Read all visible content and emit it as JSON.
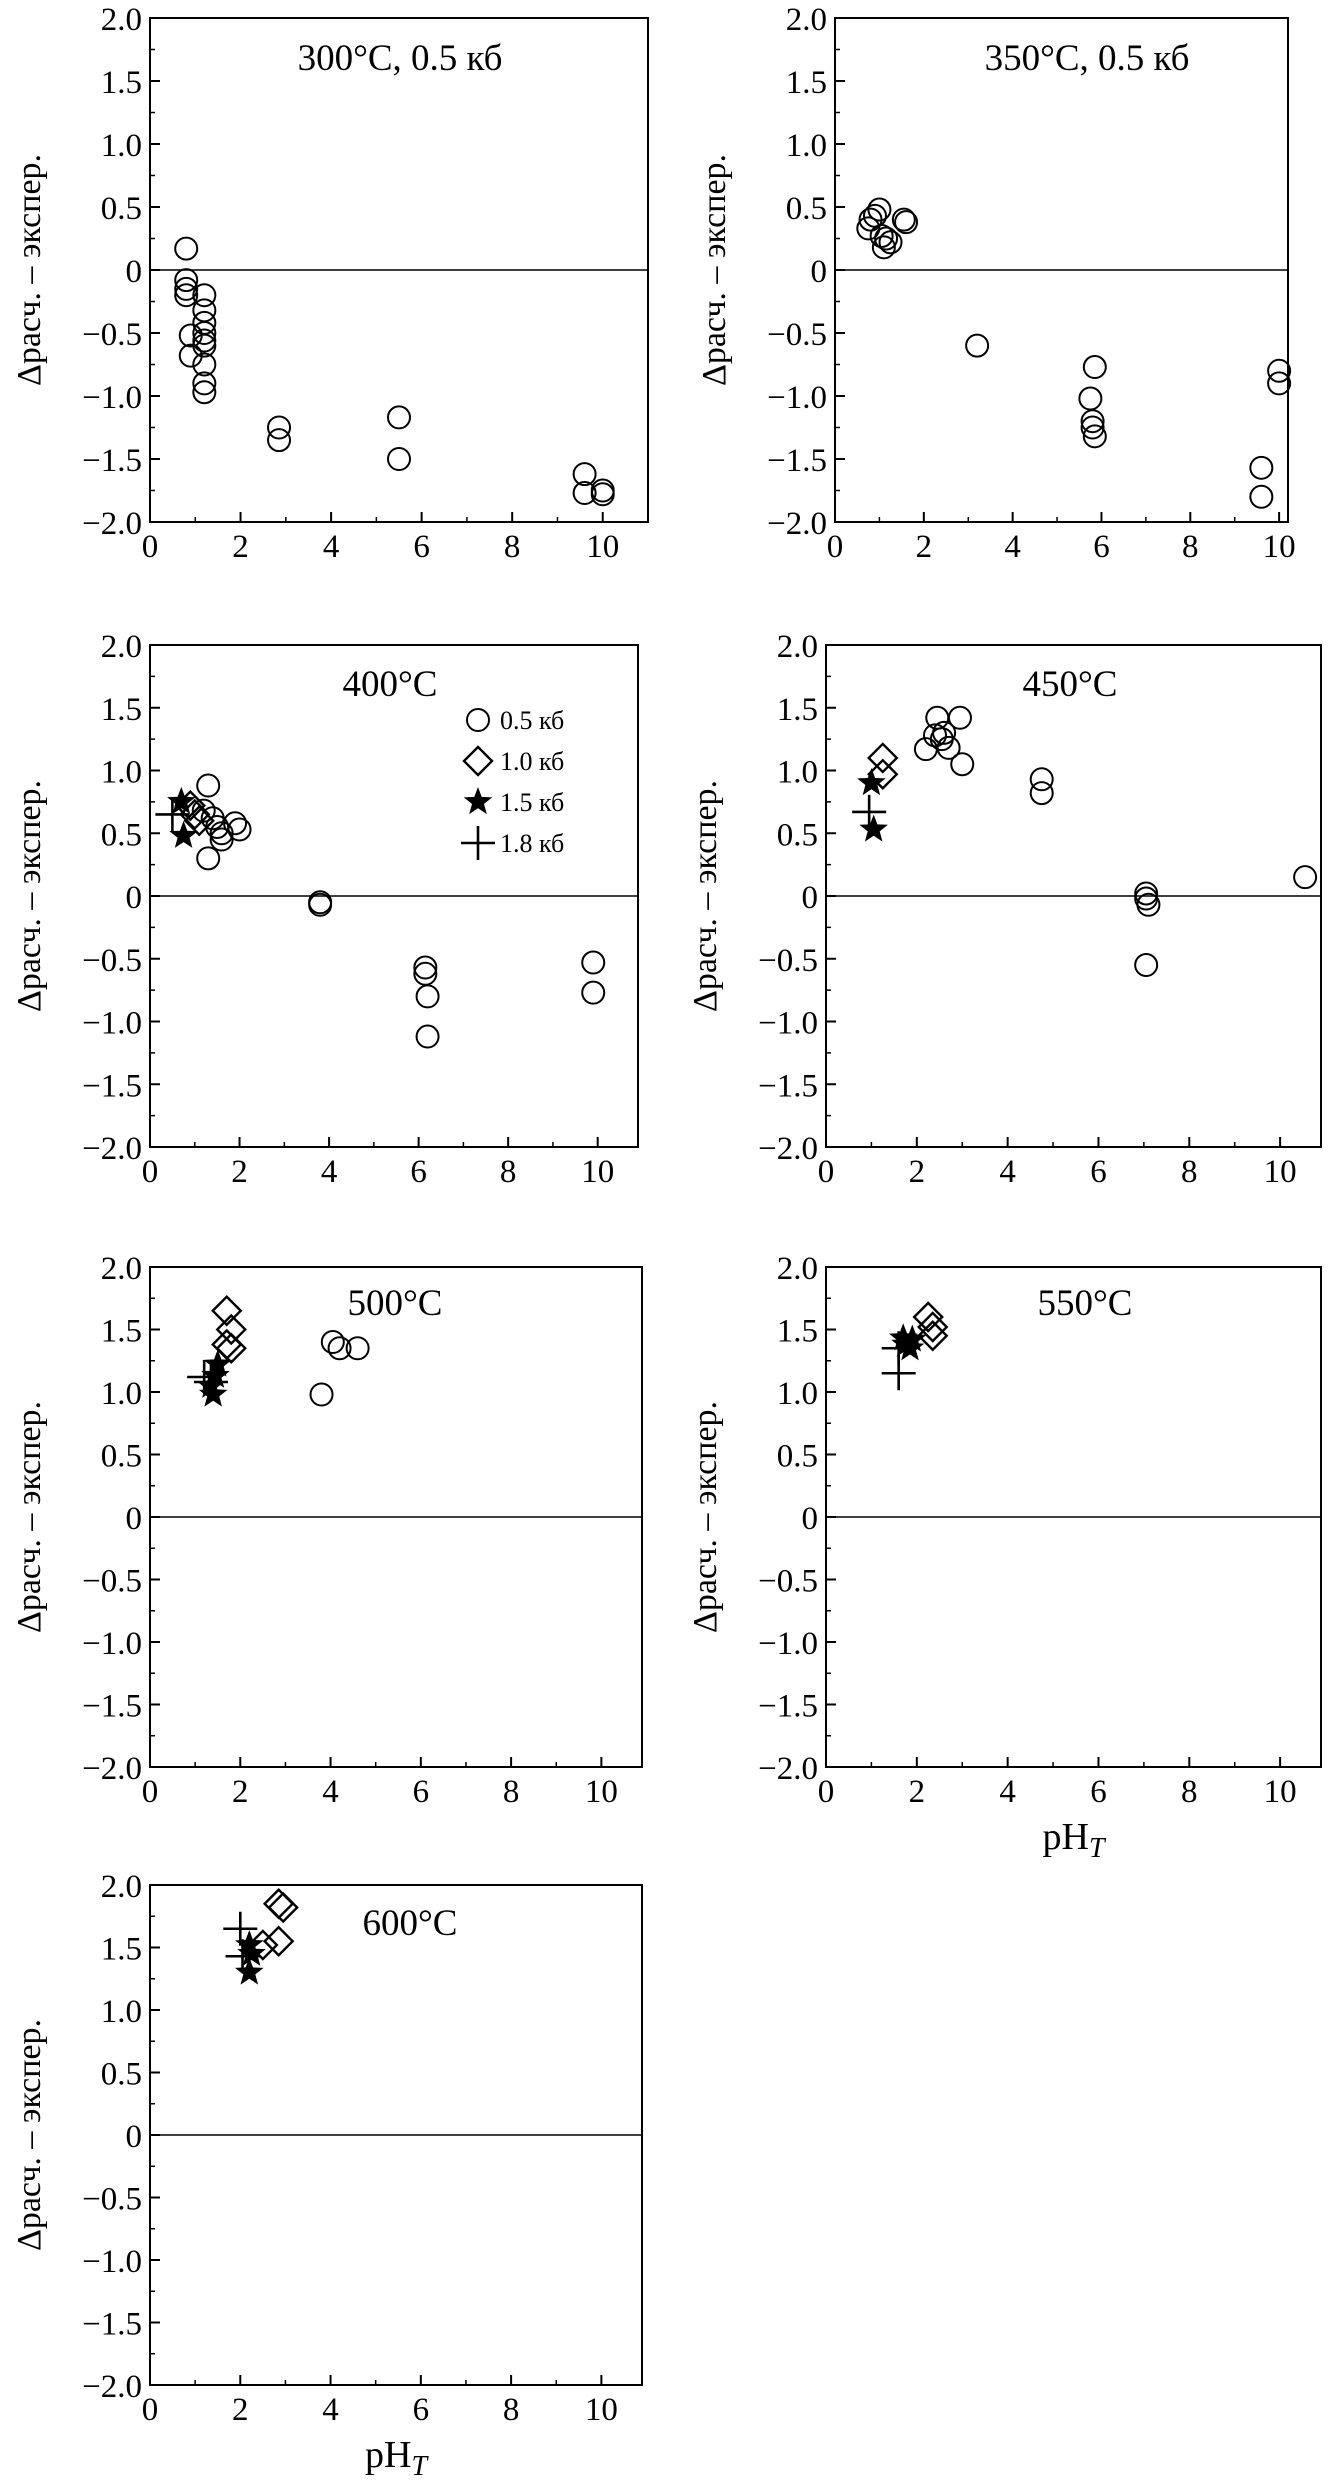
{
  "chart_data": [
    {
      "type": "scatter",
      "title": "300°C, 0.5 кб",
      "ylabel": "Δрасч. – экспер.",
      "xlabel": "",
      "xlim": [
        0,
        11
      ],
      "ylim": [
        -2.0,
        2.0
      ],
      "xticks": [
        "0",
        "2",
        "4",
        "6",
        "8",
        "10"
      ],
      "yticks": [
        "2.0",
        "1.5",
        "1.0",
        "0.5",
        "0",
        "-0.5",
        "-1.0",
        "-1.5",
        "-2.0"
      ],
      "series": [
        {
          "name": "0.5 кб",
          "marker": "circle",
          "points": [
            [
              0.8,
              0.17
            ],
            [
              0.8,
              -0.08
            ],
            [
              0.8,
              -0.15
            ],
            [
              0.8,
              -0.2
            ],
            [
              0.9,
              -0.52
            ],
            [
              0.9,
              -0.68
            ],
            [
              1.2,
              -0.2
            ],
            [
              1.2,
              -0.32
            ],
            [
              1.2,
              -0.42
            ],
            [
              1.2,
              -0.5
            ],
            [
              1.2,
              -0.56
            ],
            [
              1.2,
              -0.6
            ],
            [
              1.2,
              -0.75
            ],
            [
              1.2,
              -0.9
            ],
            [
              1.2,
              -0.97
            ],
            [
              2.85,
              -1.25
            ],
            [
              2.85,
              -1.35
            ],
            [
              5.5,
              -1.17
            ],
            [
              5.5,
              -1.5
            ],
            [
              9.6,
              -1.62
            ],
            [
              9.6,
              -1.77
            ],
            [
              10.0,
              -1.75
            ],
            [
              10.0,
              -1.78
            ]
          ]
        }
      ]
    },
    {
      "type": "scatter",
      "title": "350°C, 0.5 кб",
      "ylabel": "Δрасч. – экспер.",
      "xlabel": "",
      "xlim": [
        0,
        10.2
      ],
      "ylim": [
        -2.0,
        2.0
      ],
      "xticks": [
        "0",
        "2",
        "4",
        "6",
        "8",
        "10"
      ],
      "yticks": [
        "2.0",
        "1.5",
        "1.0",
        "0.5",
        "0",
        "-0.5",
        "-1.0",
        "-1.5",
        "-2.0"
      ],
      "series": [
        {
          "name": "0.5 кб",
          "marker": "circle",
          "points": [
            [
              0.75,
              0.33
            ],
            [
              0.8,
              0.4
            ],
            [
              0.9,
              0.43
            ],
            [
              1.0,
              0.48
            ],
            [
              1.05,
              0.27
            ],
            [
              1.1,
              0.18
            ],
            [
              1.15,
              0.25
            ],
            [
              1.25,
              0.22
            ],
            [
              1.55,
              0.4
            ],
            [
              1.6,
              0.38
            ],
            [
              3.2,
              -0.6
            ],
            [
              5.75,
              -1.02
            ],
            [
              5.8,
              -1.2
            ],
            [
              5.8,
              -1.25
            ],
            [
              5.85,
              -1.32
            ],
            [
              5.85,
              -0.77
            ],
            [
              9.6,
              -1.57
            ],
            [
              9.6,
              -1.8
            ],
            [
              10.0,
              -0.8
            ],
            [
              10.0,
              -0.9
            ]
          ]
        }
      ]
    },
    {
      "type": "scatter",
      "title": "400°C",
      "ylabel": "Δрасч. – экспер.",
      "xlabel": "",
      "xlim": [
        0,
        10.9
      ],
      "ylim": [
        -2.0,
        2.0
      ],
      "xticks": [
        "0",
        "2",
        "4",
        "6",
        "8",
        "10"
      ],
      "yticks": [
        "2.0",
        "1.5",
        "1.0",
        "0.5",
        "0",
        "-0.5",
        "-1.0",
        "-1.5",
        "-2.0"
      ],
      "legend": [
        "0.5 кб",
        "1.0 кб",
        "1.5 кб",
        "1.8 кб"
      ],
      "series": [
        {
          "name": "0.5 кб",
          "marker": "circle",
          "points": [
            [
              1.2,
              0.68
            ],
            [
              1.3,
              0.88
            ],
            [
              1.3,
              0.3
            ],
            [
              1.4,
              0.62
            ],
            [
              1.5,
              0.55
            ],
            [
              1.6,
              0.5
            ],
            [
              1.6,
              0.45
            ],
            [
              1.9,
              0.58
            ],
            [
              2.0,
              0.53
            ],
            [
              3.8,
              -0.05
            ],
            [
              3.8,
              -0.07
            ],
            [
              6.15,
              -0.57
            ],
            [
              6.15,
              -0.62
            ],
            [
              6.2,
              -0.8
            ],
            [
              6.2,
              -1.12
            ],
            [
              9.9,
              -0.53
            ],
            [
              9.9,
              -0.77
            ]
          ]
        },
        {
          "name": "1.0 кб",
          "marker": "diamond",
          "points": [
            [
              0.9,
              0.72
            ],
            [
              1.0,
              0.65
            ],
            [
              1.1,
              0.6
            ]
          ]
        },
        {
          "name": "1.5 кб",
          "marker": "star",
          "points": [
            [
              0.7,
              0.75
            ],
            [
              0.75,
              0.48
            ]
          ]
        },
        {
          "name": "1.8 кб",
          "marker": "plus",
          "points": [
            [
              0.5,
              0.65
            ]
          ]
        }
      ]
    },
    {
      "type": "scatter",
      "title": "450°C",
      "ylabel": "Δрасч. – экспер.",
      "xlabel": "",
      "xlim": [
        0,
        10.9
      ],
      "ylim": [
        -2.0,
        2.0
      ],
      "xticks": [
        "0",
        "2",
        "4",
        "6",
        "8",
        "10"
      ],
      "yticks": [
        "2.0",
        "1.5",
        "1.0",
        "0.5",
        "0",
        "-0.5",
        "-1.0",
        "-1.5",
        "-2.0"
      ],
      "series": [
        {
          "name": "0.5 кб",
          "marker": "circle",
          "points": [
            [
              2.2,
              1.17
            ],
            [
              2.4,
              1.28
            ],
            [
              2.45,
              1.42
            ],
            [
              2.55,
              1.25
            ],
            [
              2.6,
              1.3
            ],
            [
              2.7,
              1.18
            ],
            [
              2.95,
              1.42
            ],
            [
              3.0,
              1.05
            ],
            [
              4.75,
              0.93
            ],
            [
              4.75,
              0.82
            ],
            [
              7.05,
              0.02
            ],
            [
              7.05,
              -0.02
            ],
            [
              7.1,
              -0.07
            ],
            [
              7.05,
              -0.55
            ],
            [
              10.55,
              0.15
            ]
          ]
        },
        {
          "name": "1.0 кб",
          "marker": "diamond",
          "points": [
            [
              1.25,
              1.1
            ],
            [
              1.25,
              0.97
            ]
          ]
        },
        {
          "name": "1.5 кб",
          "marker": "star",
          "points": [
            [
              1.0,
              0.9
            ],
            [
              1.05,
              0.53
            ]
          ]
        },
        {
          "name": "1.8 кб",
          "marker": "plus",
          "points": [
            [
              0.95,
              0.67
            ]
          ]
        }
      ]
    },
    {
      "type": "scatter",
      "title": "500°C",
      "ylabel": "Δрасч. – экспер.",
      "xlabel": "",
      "xlim": [
        0,
        10.9
      ],
      "ylim": [
        -2.0,
        2.0
      ],
      "xticks": [
        "0",
        "2",
        "4",
        "6",
        "8",
        "10"
      ],
      "yticks": [
        "2.0",
        "1.5",
        "1.0",
        "0.5",
        "0",
        "-0.5",
        "-1.0",
        "-1.5",
        "-2.0"
      ],
      "series": [
        {
          "name": "0.5 кб",
          "marker": "circle",
          "points": [
            [
              3.8,
              0.98
            ],
            [
              4.05,
              1.4
            ],
            [
              4.2,
              1.35
            ],
            [
              4.6,
              1.35
            ]
          ]
        },
        {
          "name": "1.0 кб",
          "marker": "diamond",
          "points": [
            [
              1.7,
              1.65
            ],
            [
              1.8,
              1.5
            ],
            [
              1.7,
              1.38
            ],
            [
              1.8,
              1.35
            ]
          ]
        },
        {
          "name": "1.5 кб",
          "marker": "star",
          "points": [
            [
              1.35,
              1.05
            ],
            [
              1.4,
              0.98
            ],
            [
              1.45,
              1.13
            ],
            [
              1.5,
              1.22
            ]
          ]
        },
        {
          "name": "1.8 кб",
          "marker": "plus",
          "points": [
            [
              1.2,
              1.12
            ],
            [
              1.35,
              1.08
            ]
          ]
        }
      ]
    },
    {
      "type": "scatter",
      "title": "550°C",
      "ylabel": "Δрасч. – экспер.",
      "xlabel": "pH_T",
      "xlim": [
        0,
        10.9
      ],
      "ylim": [
        -2.0,
        2.0
      ],
      "xticks": [
        "0",
        "2",
        "4",
        "6",
        "8",
        "10"
      ],
      "yticks": [
        "2.0",
        "1.5",
        "1.0",
        "0.5",
        "0",
        "-0.5",
        "-1.0",
        "-1.5",
        "-2.0"
      ],
      "series": [
        {
          "name": "1.0 кб",
          "marker": "diamond",
          "points": [
            [
              2.25,
              1.6
            ],
            [
              2.35,
              1.52
            ],
            [
              2.35,
              1.45
            ]
          ]
        },
        {
          "name": "1.5 кб",
          "marker": "star",
          "points": [
            [
              1.7,
              1.43
            ],
            [
              1.75,
              1.38
            ],
            [
              1.85,
              1.35
            ],
            [
              1.9,
              1.42
            ]
          ]
        },
        {
          "name": "1.8 кб",
          "marker": "plus",
          "points": [
            [
              1.6,
              1.35
            ],
            [
              1.6,
              1.15
            ]
          ]
        }
      ]
    },
    {
      "type": "scatter",
      "title": "600°C",
      "ylabel": "Δрасч. – экспер.",
      "xlabel": "pH_T",
      "xlim": [
        0,
        10.9
      ],
      "ylim": [
        -2.0,
        2.0
      ],
      "xticks": [
        "0",
        "2",
        "4",
        "6",
        "8",
        "10"
      ],
      "yticks": [
        "2.0",
        "1.5",
        "1.0",
        "0.5",
        "0",
        "-0.5",
        "-1.0",
        "-1.5",
        "-2.0"
      ],
      "series": [
        {
          "name": "1.0 кб",
          "marker": "diamond",
          "points": [
            [
              2.85,
              1.85
            ],
            [
              2.95,
              1.82
            ],
            [
              2.85,
              1.55
            ],
            [
              2.5,
              1.52
            ]
          ]
        },
        {
          "name": "1.5 кб",
          "marker": "star",
          "points": [
            [
              2.2,
              1.52
            ],
            [
              2.25,
              1.45
            ],
            [
              2.2,
              1.3
            ]
          ]
        },
        {
          "name": "1.8 кб",
          "marker": "plus",
          "points": [
            [
              2.0,
              1.65
            ],
            [
              2.05,
              1.43
            ]
          ]
        }
      ]
    }
  ]
}
